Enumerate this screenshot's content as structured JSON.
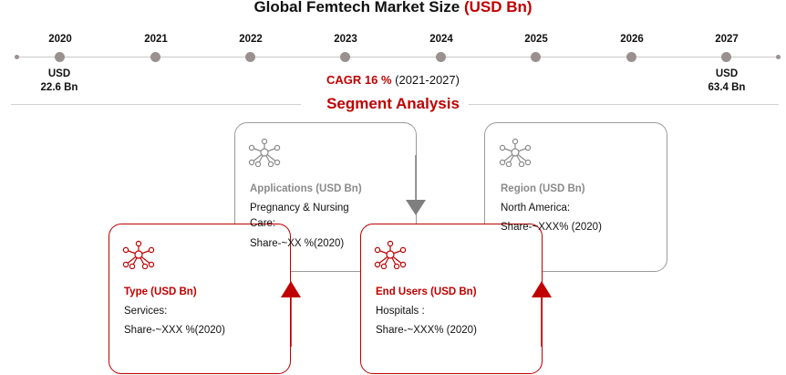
{
  "title": {
    "main": "Global Femtech Market Size ",
    "accent": "(USD Bn)"
  },
  "timeline": {
    "years": [
      "2020",
      "2021",
      "2022",
      "2023",
      "2024",
      "2025",
      "2026",
      "2027"
    ],
    "start_value": {
      "line1": "USD",
      "line2": "22.6 Bn"
    },
    "end_value": {
      "line1": "USD",
      "line2": "63.4 Bn"
    },
    "cagr": {
      "label": "CAGR 16 %",
      "period": " (2021-2027)"
    }
  },
  "segment_title": "Segment Analysis",
  "cards": {
    "applications": {
      "title": "Applications (USD Bn)",
      "item": "Pregnancy & Nursing Care:",
      "share": "Share-~XX %(2020)"
    },
    "region": {
      "title": "Region (USD Bn)",
      "item": "North America:",
      "share": "Share-~XXX% (2020)"
    },
    "type": {
      "title": "Type (USD Bn)",
      "item": "Services:",
      "share": "Share-~XXX %(2020)"
    },
    "end_users": {
      "title": "End Users (USD Bn)",
      "item": "Hospitals :",
      "share": "Share-~XXX% (2020)"
    }
  },
  "colors": {
    "accent": "#c00000",
    "gray_border": "#9a9a9a",
    "dot": "#9a9090",
    "arrow_gray": "#7f7f7f"
  },
  "icons": [
    "network-icon"
  ]
}
